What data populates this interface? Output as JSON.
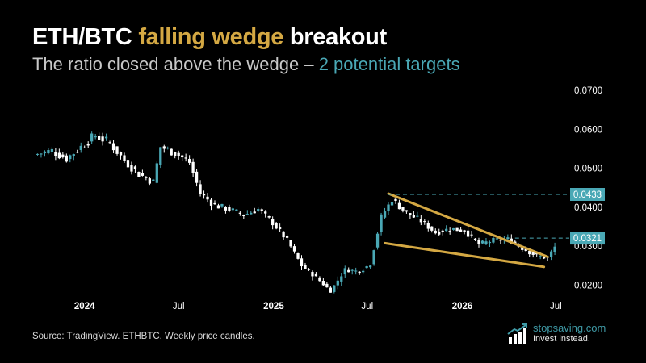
{
  "header": {
    "title_part1": "ETH/BTC ",
    "title_accent": "falling wedge",
    "title_part2": " breakout",
    "subtitle_part1": "The ratio closed above the wedge – ",
    "subtitle_accent": "2 potential targets"
  },
  "footer": {
    "source": "Source: TradingView. ETHBTC. Weekly price candles.",
    "brand_name": "stopsaving.com",
    "brand_tagline": "Invest instead."
  },
  "colors": {
    "background": "#000000",
    "candle": "#ffffff",
    "candle_highlight": "#4aa8b5",
    "wedge": "#d4a843",
    "target": "#4aa8b5",
    "title_accent": "#d4a843",
    "subtitle_accent": "#4aa8b5"
  },
  "chart_data": {
    "type": "candlestick",
    "interval": "weekly",
    "symbol": "ETHBTC",
    "x_ticks": [
      {
        "date": "2024-01-01",
        "label": "2024"
      },
      {
        "date": "2024-07-01",
        "label": "Jul"
      },
      {
        "date": "2025-01-01",
        "label": "2025"
      },
      {
        "date": "2025-07-01",
        "label": "Jul"
      },
      {
        "date": "2026-01-01",
        "label": "2026"
      },
      {
        "date": "2026-07-01",
        "label": "Jul"
      }
    ],
    "y_ticks": [
      "0.0200",
      "0.0300",
      "0.0400",
      "0.0500",
      "0.0600",
      "0.0700"
    ],
    "y_tick_values": [
      0.02,
      0.03,
      0.04,
      0.05,
      0.06,
      0.07
    ],
    "ylim": [
      0.017,
      0.0725
    ],
    "xlim": [
      "2023-09-25",
      "2026-07-27"
    ],
    "targets": [
      {
        "value": 0.0433,
        "label": "0.0433"
      },
      {
        "value": 0.0321,
        "label": "0.0321"
      }
    ],
    "wedge": {
      "upper": [
        [
          "2025-08-11",
          0.0435
        ],
        [
          "2026-06-15",
          0.0273
        ]
      ],
      "lower": [
        [
          "2025-08-04",
          0.0308
        ],
        [
          "2026-06-08",
          0.0247
        ]
      ]
    },
    "price_points": [
      [
        "2023-09-25",
        0.0535
      ],
      [
        "2023-10-30",
        0.0545
      ],
      [
        "2023-11-27",
        0.0525
      ],
      [
        "2023-12-25",
        0.0555
      ],
      [
        "2024-01-22",
        0.0585
      ],
      [
        "2024-02-19",
        0.0565
      ],
      [
        "2024-03-18",
        0.052
      ],
      [
        "2024-04-15",
        0.0485
      ],
      [
        "2024-05-13",
        0.0465
      ],
      [
        "2024-05-27",
        0.0555
      ],
      [
        "2024-06-24",
        0.054
      ],
      [
        "2024-07-22",
        0.0515
      ],
      [
        "2024-08-12",
        0.0435
      ],
      [
        "2024-09-09",
        0.0405
      ],
      [
        "2024-10-07",
        0.0395
      ],
      [
        "2024-11-04",
        0.038
      ],
      [
        "2024-12-02",
        0.0395
      ],
      [
        "2024-12-30",
        0.036
      ],
      [
        "2025-01-27",
        0.0315
      ],
      [
        "2025-02-24",
        0.025
      ],
      [
        "2025-03-24",
        0.022
      ],
      [
        "2025-04-21",
        0.0185
      ],
      [
        "2025-05-19",
        0.024
      ],
      [
        "2025-06-16",
        0.0235
      ],
      [
        "2025-07-07",
        0.0255
      ],
      [
        "2025-07-28",
        0.0375
      ],
      [
        "2025-08-18",
        0.042
      ],
      [
        "2025-09-15",
        0.0385
      ],
      [
        "2025-10-13",
        0.0365
      ],
      [
        "2025-11-10",
        0.0335
      ],
      [
        "2025-12-08",
        0.0345
      ],
      [
        "2026-01-05",
        0.034
      ],
      [
        "2026-02-02",
        0.0305
      ],
      [
        "2026-03-02",
        0.0315
      ],
      [
        "2026-03-30",
        0.0318
      ],
      [
        "2026-04-27",
        0.0295
      ],
      [
        "2026-05-25",
        0.0275
      ],
      [
        "2026-06-15",
        0.027
      ],
      [
        "2026-06-29",
        0.0298
      ]
    ]
  }
}
